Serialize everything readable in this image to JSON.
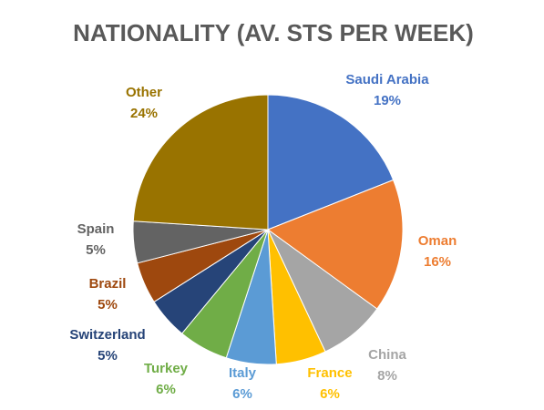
{
  "chart_data": {
    "type": "pie",
    "title": "NATIONALITY (AV. STS PER WEEK)",
    "categories": [
      "Saudi Arabia",
      "Oman",
      "China",
      "France",
      "Italy",
      "Turkey",
      "Switzerland",
      "Brazil",
      "Spain",
      "Other"
    ],
    "values": [
      19,
      16,
      8,
      6,
      6,
      6,
      5,
      5,
      5,
      24
    ],
    "value_labels": [
      "19%",
      "16%",
      "8%",
      "6%",
      "6%",
      "6%",
      "5%",
      "5%",
      "5%",
      "24%"
    ],
    "colors": [
      "#4472c4",
      "#ed7d31",
      "#a5a5a5",
      "#ffc000",
      "#5b9bd5",
      "#70ad47",
      "#264478",
      "#9e480e",
      "#636363",
      "#997300"
    ]
  }
}
